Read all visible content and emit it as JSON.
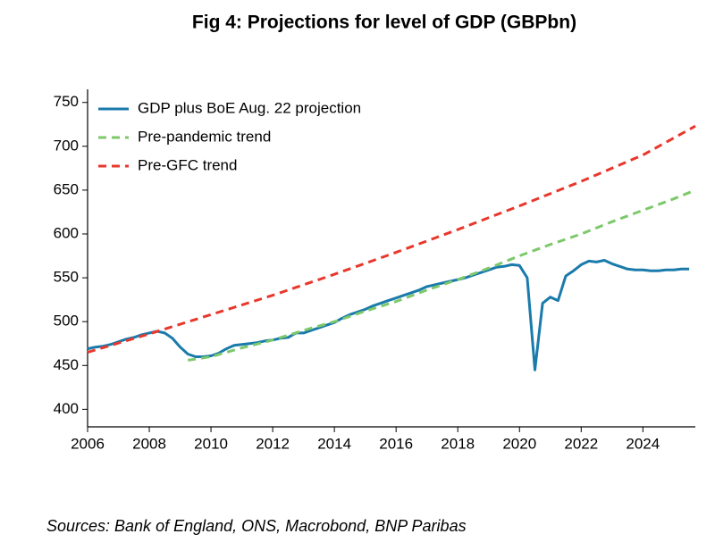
{
  "chart_data": {
    "type": "line",
    "title": "Fig 4: Projections for level of GDP (GBPbn)",
    "source": "Sources: Bank of England, ONS, Macrobond, BNP Paribas",
    "xlim": [
      2006,
      2025.7
    ],
    "xticks": [
      2006,
      2008,
      2010,
      2012,
      2014,
      2016,
      2018,
      2020,
      2022,
      2024
    ],
    "ylim": [
      380,
      765
    ],
    "yticks": [
      400,
      450,
      500,
      550,
      600,
      650,
      700,
      750
    ],
    "grid": false,
    "legend": "upper left",
    "series": [
      {
        "name": "GDP plus BoE Aug. 22 projection",
        "color": "#1a7bab",
        "style": "solid",
        "x": [
          2006,
          2006.25,
          2006.5,
          2006.75,
          2007,
          2007.25,
          2007.5,
          2007.75,
          2008,
          2008.25,
          2008.5,
          2008.75,
          2009,
          2009.25,
          2009.5,
          2009.75,
          2010,
          2010.25,
          2010.5,
          2010.75,
          2011,
          2011.25,
          2011.5,
          2011.75,
          2012,
          2012.25,
          2012.5,
          2012.75,
          2013,
          2013.25,
          2013.5,
          2013.75,
          2014,
          2014.25,
          2014.5,
          2014.75,
          2015,
          2015.25,
          2015.5,
          2015.75,
          2016,
          2016.25,
          2016.5,
          2016.75,
          2017,
          2017.25,
          2017.5,
          2017.75,
          2018,
          2018.25,
          2018.5,
          2018.75,
          2019,
          2019.25,
          2019.5,
          2019.75,
          2020,
          2020.25,
          2020.5,
          2020.75,
          2021,
          2021.25,
          2021.5,
          2021.75,
          2022,
          2022.25,
          2022.5,
          2022.75,
          2023,
          2023.25,
          2023.5,
          2023.75,
          2024,
          2024.25,
          2024.5,
          2024.75,
          2025,
          2025.25,
          2025.5
        ],
        "values": [
          469,
          471,
          472,
          474,
          477,
          480,
          482,
          485,
          487,
          489,
          487,
          481,
          471,
          463,
          460,
          460,
          461,
          464,
          469,
          473,
          474,
          475,
          476,
          478,
          479,
          481,
          482,
          487,
          487,
          490,
          493,
          496,
          499,
          504,
          508,
          511,
          514,
          518,
          521,
          524,
          527,
          530,
          533,
          536,
          540,
          542,
          544,
          546,
          548,
          550,
          553,
          556,
          559,
          562,
          563,
          565,
          564,
          550,
          445,
          521,
          528,
          524,
          552,
          558,
          565,
          569,
          568,
          570,
          566,
          563,
          560,
          559,
          559,
          558,
          558,
          559,
          559,
          560,
          560
        ]
      },
      {
        "name": "Pre-pandemic trend",
        "color": "#7dc86b",
        "style": "dashed",
        "x": [
          2009.25,
          2010,
          2011,
          2012,
          2013,
          2014,
          2015,
          2016,
          2017,
          2018,
          2019,
          2020,
          2021,
          2022,
          2023,
          2024,
          2025,
          2025.7
        ],
        "values": [
          456,
          460,
          470,
          479,
          490,
          500,
          512,
          523,
          536,
          548,
          561,
          575,
          588,
          600,
          614,
          627,
          640,
          650
        ]
      },
      {
        "name": "Pre-GFC trend",
        "color": "#e8372c",
        "style": "dashed",
        "x": [
          2006,
          2008,
          2010,
          2012,
          2014,
          2016,
          2018,
          2020,
          2022,
          2024,
          2025.7
        ],
        "values": [
          465,
          486,
          508,
          530,
          554,
          579,
          605,
          632,
          660,
          690,
          723
        ]
      }
    ]
  }
}
